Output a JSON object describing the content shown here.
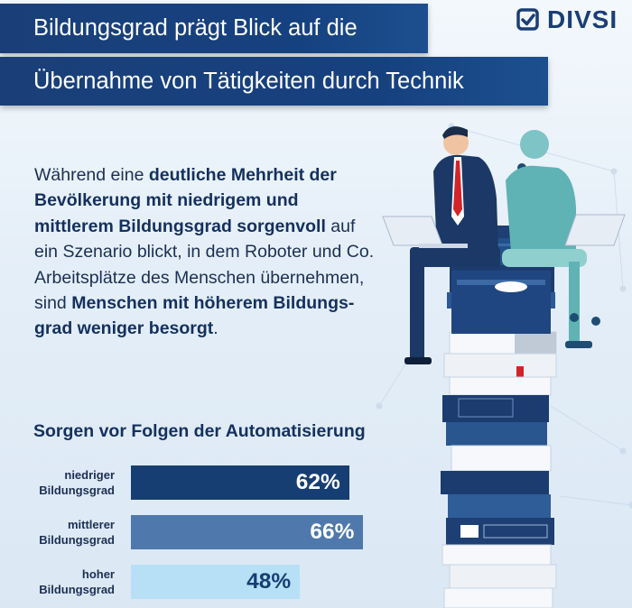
{
  "header": {
    "title_line1": "Bildungsgrad prägt Blick auf die",
    "title_line2": "Übernahme von Tätigkeiten durch Technik",
    "logo_text": "DIVSI"
  },
  "intro": {
    "p1": "Während eine ",
    "b1": "deutliche Mehrheit der Bevölkerung mit niedrigem und mittlerem Bildungsgrad sorgenvoll",
    "p2": " auf ein Szenario blickt, in dem Roboter und Co. Arbeitsplätze des Menschen übernehmen, sind ",
    "b2": "Menschen mit höherem Bildungs­grad weniger besorgt",
    "p3": "."
  },
  "chart_data": {
    "type": "bar",
    "orientation": "horizontal",
    "title": "Sorgen vor Folgen der Automatisierung",
    "categories": [
      "niedriger Bildungsgrad",
      "mittlerer Bildungsgrad",
      "hoher Bildungsgrad"
    ],
    "category_lines": [
      [
        "niedriger",
        "Bildungsgrad"
      ],
      [
        "mittlerer",
        "Bildungsgrad"
      ],
      [
        "hoher",
        "Bildungsgrad"
      ]
    ],
    "values": [
      62,
      66,
      48
    ],
    "value_labels": [
      "62%",
      "66%",
      "48%"
    ],
    "unit": "%",
    "xlim": [
      0,
      100
    ],
    "bar_colors": [
      "#173e72",
      "#4f78ac",
      "#b7e0f6"
    ],
    "label_colors": [
      "#ffffff",
      "#ffffff",
      "#173e72"
    ],
    "grid": false,
    "legend": "none"
  },
  "colors": {
    "brand_dark": "#16417f",
    "text_dark": "#14305e"
  }
}
